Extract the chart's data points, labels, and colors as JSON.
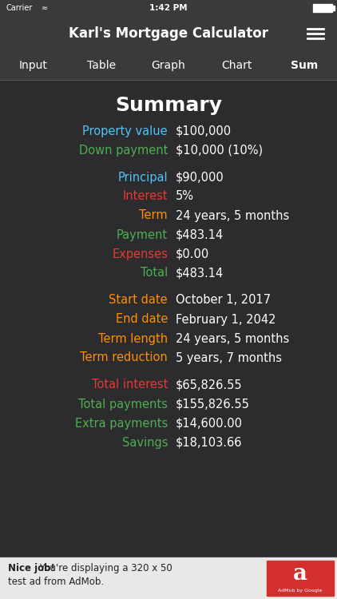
{
  "bg_color": "#2c2c2e",
  "header_bg": "#3a3a3c",
  "nav_bg": "#3a3a3c",
  "title": "Summary",
  "title_color": "#ffffff",
  "title_fontsize": 18,
  "nav_items": [
    "Input",
    "Table",
    "Graph",
    "Chart",
    "Sum"
  ],
  "nav_active": "Sum",
  "app_title": "Karl's Mortgage Calculator",
  "rows": [
    {
      "label": "Property value",
      "value": "$100,000",
      "label_color": "#4fc3f7",
      "value_color": "#ffffff",
      "gap_before": false
    },
    {
      "label": "Down payment",
      "value": "$10,000 (10%)",
      "label_color": "#4caf50",
      "value_color": "#ffffff",
      "gap_before": false
    },
    {
      "label": "Principal",
      "value": "$90,000",
      "label_color": "#4fc3f7",
      "value_color": "#ffffff",
      "gap_before": true
    },
    {
      "label": "Interest",
      "value": "5%",
      "label_color": "#e53935",
      "value_color": "#ffffff",
      "gap_before": false
    },
    {
      "label": "Term",
      "value": "24 years, 5 months",
      "label_color": "#ff8f00",
      "value_color": "#ffffff",
      "gap_before": false
    },
    {
      "label": "Payment",
      "value": "$483.14",
      "label_color": "#4caf50",
      "value_color": "#ffffff",
      "gap_before": false
    },
    {
      "label": "Expenses",
      "value": "$0.00",
      "label_color": "#e53935",
      "value_color": "#ffffff",
      "gap_before": false
    },
    {
      "label": "Total",
      "value": "$483.14",
      "label_color": "#4caf50",
      "value_color": "#ffffff",
      "gap_before": false
    },
    {
      "label": "Start date",
      "value": "October 1, 2017",
      "label_color": "#ff8f00",
      "value_color": "#ffffff",
      "gap_before": true
    },
    {
      "label": "End date",
      "value": "February 1, 2042",
      "label_color": "#ff8f00",
      "value_color": "#ffffff",
      "gap_before": false
    },
    {
      "label": "Term length",
      "value": "24 years, 5 months",
      "label_color": "#ff8f00",
      "value_color": "#ffffff",
      "gap_before": false
    },
    {
      "label": "Term reduction",
      "value": "5 years, 7 months",
      "label_color": "#ff8f00",
      "value_color": "#ffffff",
      "gap_before": false
    },
    {
      "label": "Total interest",
      "value": "$65,826.55",
      "label_color": "#e53935",
      "value_color": "#ffffff",
      "gap_before": true
    },
    {
      "label": "Total payments",
      "value": "$155,826.55",
      "label_color": "#4caf50",
      "value_color": "#ffffff",
      "gap_before": false
    },
    {
      "label": "Extra payments",
      "value": "$14,600.00",
      "label_color": "#4caf50",
      "value_color": "#ffffff",
      "gap_before": false
    },
    {
      "label": "Savings",
      "value": "$18,103.66",
      "label_color": "#4caf50",
      "value_color": "#ffffff",
      "gap_before": false
    }
  ],
  "ad_bg": "#e8e8e8",
  "ad_text_bold": "Nice job!",
  "ad_text_normal": " You're displaying a 320 x 50",
  "ad_text_line2": "test ad from AdMob.",
  "ad_btn_color": "#d32f2f"
}
